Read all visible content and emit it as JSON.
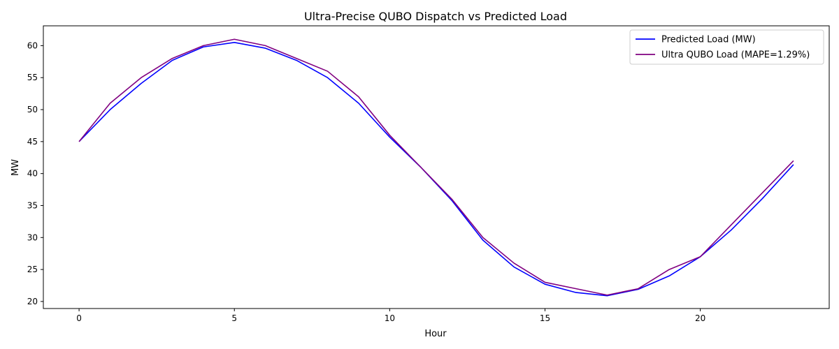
{
  "chart_data": {
    "type": "line",
    "title": "Ultra-Precise QUBO Dispatch vs Predicted Load",
    "xlabel": "Hour",
    "ylabel": "MW",
    "xlim": [
      -1.15,
      24.15
    ],
    "ylim": [
      18.9,
      63.1
    ],
    "xticks": [
      0,
      5,
      10,
      15,
      20
    ],
    "yticks": [
      20,
      25,
      30,
      35,
      40,
      45,
      50,
      55,
      60
    ],
    "grid": false,
    "legend_position": "top-right",
    "x": [
      0,
      1,
      2,
      3,
      4,
      5,
      6,
      7,
      8,
      9,
      10,
      11,
      12,
      13,
      14,
      15,
      16,
      17,
      18,
      19,
      20,
      21,
      22,
      23
    ],
    "series": [
      {
        "name": "Predicted Load (MW)",
        "color": "#0000ff",
        "values": [
          45.0,
          50.0,
          54.1,
          57.7,
          59.8,
          60.5,
          59.6,
          57.7,
          55.0,
          51.0,
          45.7,
          41.0,
          35.8,
          29.6,
          25.4,
          22.7,
          21.4,
          20.9,
          21.9,
          24.0,
          27.0,
          31.2,
          36.1,
          41.4
        ]
      },
      {
        "name": "Ultra QUBO Load (MAPE=1.29%)",
        "color": "#800080",
        "values": [
          45.0,
          51.0,
          55.0,
          58.0,
          60.0,
          61.0,
          60.0,
          58.0,
          56.0,
          52.0,
          46.0,
          41.0,
          36.0,
          30.0,
          26.0,
          23.0,
          22.0,
          21.0,
          22.0,
          25.0,
          27.0,
          32.0,
          37.0,
          42.0
        ]
      }
    ]
  }
}
